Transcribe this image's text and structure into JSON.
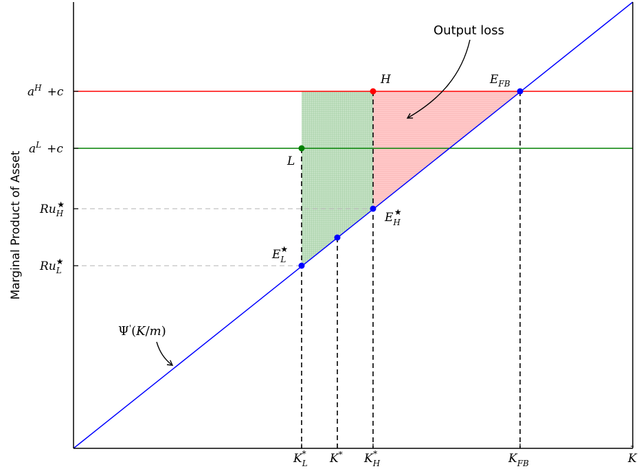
{
  "chart_data": {
    "type": "line",
    "title": "",
    "xlabel": "",
    "ylabel": "Marginal Product of Asset",
    "grid": false,
    "xlim": [
      0,
      100
    ],
    "ylim": [
      0,
      100
    ],
    "x_ticks": [
      {
        "value": 40.8,
        "label": "K_L*"
      },
      {
        "value": 47.2,
        "label": "K*"
      },
      {
        "value": 53.6,
        "label": "K_H*"
      },
      {
        "value": 80.0,
        "label": "K_FB"
      },
      {
        "value": 100.0,
        "label": "K̄"
      }
    ],
    "y_ticks": [
      {
        "value": 80.0,
        "label": "a^H +c"
      },
      {
        "value": 67.4,
        "label": "a^L +c"
      },
      {
        "value": 53.6,
        "label": "Ru_H*"
      },
      {
        "value": 40.8,
        "label": "Ru_L*"
      }
    ],
    "series": [
      {
        "name": "Ψ'(K/m)",
        "color": "#0000ff",
        "x": [
          0,
          100
        ],
        "y": [
          0,
          100
        ]
      },
      {
        "name": "",
        "color": "#ff0000",
        "x": [
          0,
          100
        ],
        "y": [
          80,
          80
        ]
      },
      {
        "name": "",
        "color": "#008000",
        "x": [
          0,
          100
        ],
        "y": [
          67.4,
          67.4
        ]
      }
    ],
    "points": [
      {
        "label": "H",
        "x": 53.6,
        "y": 80.0,
        "color": "#ff0000"
      },
      {
        "label": "E_FB",
        "x": 80.0,
        "y": 80.0,
        "color": "#0000ff"
      },
      {
        "label": "L",
        "x": 40.8,
        "y": 67.4,
        "color": "#008000"
      },
      {
        "label": "E_H*",
        "x": 53.6,
        "y": 53.6,
        "color": "#0000ff"
      },
      {
        "label": "",
        "x": 47.2,
        "y": 47.2,
        "color": "#0000ff"
      },
      {
        "label": "E_L*",
        "x": 40.8,
        "y": 40.8,
        "color": "#0000ff"
      }
    ],
    "shaded_regions": [
      {
        "color": "#008000",
        "polygon": [
          [
            40.8,
            80
          ],
          [
            53.6,
            80
          ],
          [
            53.6,
            53.6
          ],
          [
            40.8,
            40.8
          ]
        ]
      },
      {
        "color": "#ff0000",
        "polygon": [
          [
            53.6,
            80
          ],
          [
            80,
            80
          ],
          [
            53.6,
            53.6
          ]
        ]
      }
    ],
    "annotations": [
      {
        "text": "Output loss"
      },
      {
        "text": "Ψ'(K/m)"
      }
    ]
  }
}
